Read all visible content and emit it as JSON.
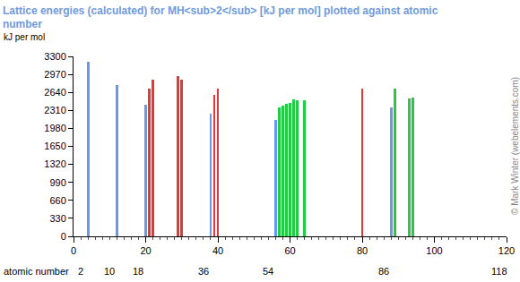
{
  "chart_data": {
    "type": "bar",
    "title": "Lattice energies (calculated) for MH<sub>2</sub> [kJ per mol] plotted against atomic number",
    "y_label": "kJ per mol",
    "x_label": "atomic number",
    "credit": "© Mark Winter (webelements.com)",
    "series": [
      {
        "color": "#6699ee",
        "x": [
          4,
          12,
          20,
          38,
          56,
          88
        ],
        "values": [
          3205,
          2775,
          2414,
          2250,
          2134,
          2364
        ]
      },
      {
        "color": "#ee3333",
        "x": [
          21,
          22,
          29,
          30,
          39,
          40,
          80
        ],
        "values": [
          2709,
          2873,
          2939,
          2873,
          2594,
          2709,
          2709
        ]
      },
      {
        "color": "#22cc44",
        "x": [
          57,
          58,
          59,
          60,
          61,
          62,
          64,
          89,
          93,
          94
        ],
        "values": [
          2364,
          2397,
          2430,
          2446,
          2512,
          2496,
          2496,
          2709,
          2529,
          2545
        ]
      }
    ],
    "xlim": [
      0,
      120
    ],
    "xticks": [
      0,
      20,
      40,
      60,
      80,
      100,
      120
    ],
    "ylim": [
      0,
      3300
    ],
    "yticks": [
      0,
      330,
      660,
      990,
      1320,
      1650,
      1980,
      2310,
      2640,
      2970,
      3300
    ],
    "annotations": [
      {
        "x": 2,
        "text": "2"
      },
      {
        "x": 10,
        "text": "10"
      },
      {
        "x": 18,
        "text": "18"
      },
      {
        "x": 36,
        "text": "36"
      },
      {
        "x": 54,
        "text": "54"
      },
      {
        "x": 86,
        "text": "86"
      },
      {
        "x": 118,
        "text": "118"
      }
    ],
    "grid": false
  }
}
